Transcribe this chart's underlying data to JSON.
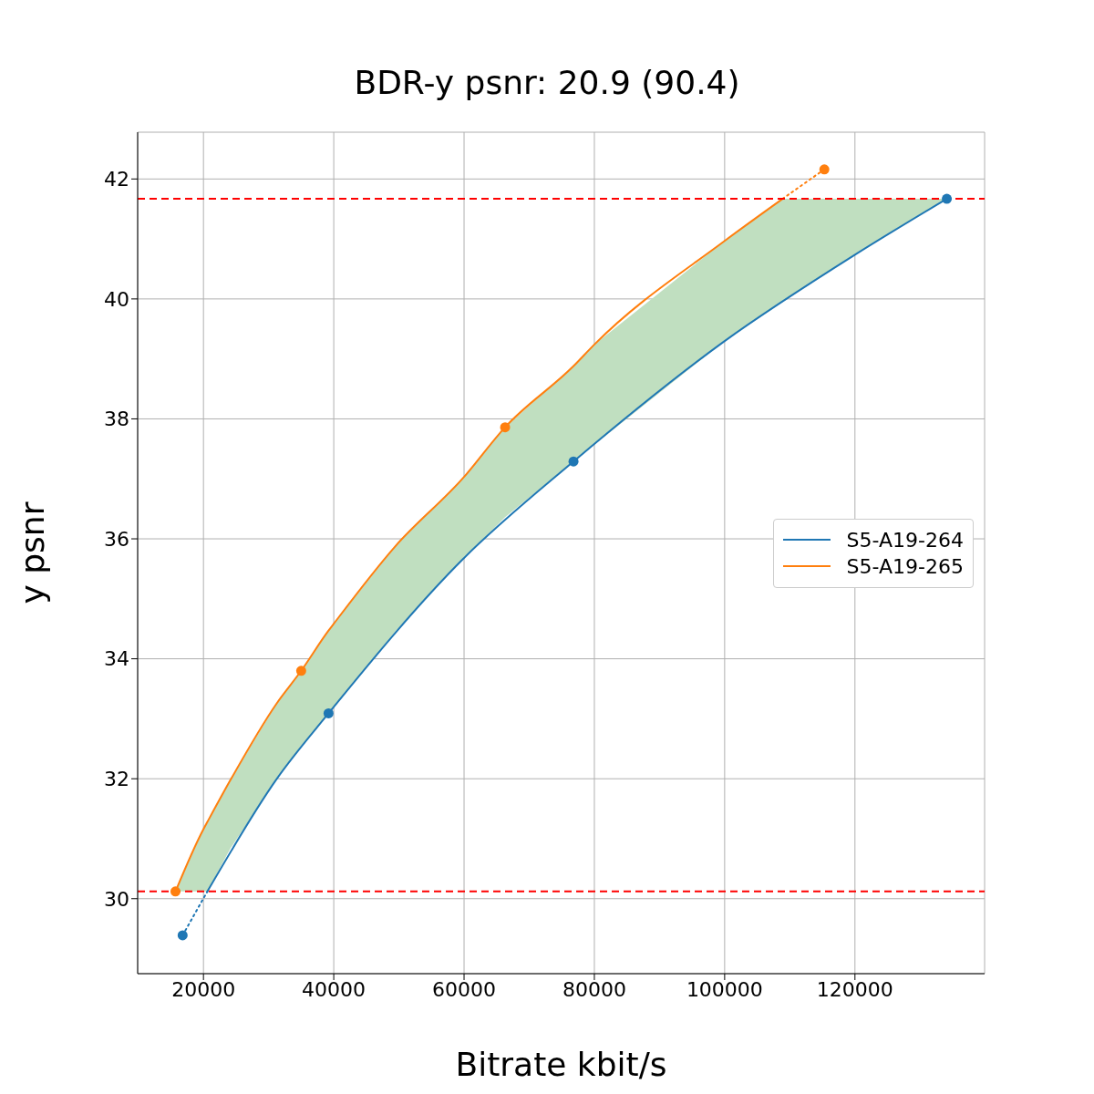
{
  "chart_data": {
    "type": "line",
    "title": "BDR-y psnr: 20.9 (90.4)",
    "xlabel": "Bitrate kbit/s",
    "ylabel": "y psnr",
    "xlim": [
      9900,
      139900
    ],
    "xticks": [
      20000,
      40000,
      60000,
      80000,
      100000,
      120000
    ],
    "ylim": [
      28.75,
      42.78
    ],
    "yticks": [
      30,
      32,
      34,
      36,
      38,
      40,
      42
    ],
    "grid": true,
    "legend": "center right",
    "series": [
      {
        "name": "S5-A19-264",
        "color": "#1f77b4",
        "line_style": "solid",
        "x": [
          20600,
          31200,
          39200,
          59900,
          76800,
          99900,
          119900,
          134100
        ],
        "values": [
          30.12,
          31.99,
          33.09,
          35.67,
          37.29,
          39.29,
          40.73,
          41.67
        ]
      },
      {
        "type": "line",
        "color": "#1f77b4",
        "line_style": "dotted",
        "x": [
          16800,
          20600
        ],
        "values": [
          29.39,
          30.12
        ]
      },
      {
        "name": "S5-A19-265",
        "color": "#ff7f0e",
        "line_style": "solid",
        "x": [
          15700,
          20000,
          20600,
          24200,
          31200,
          35000,
          39200,
          39900,
          49400,
          59900,
          66300,
          76800,
          80000,
          99900,
          108900,
          119900,
          134100
        ],
        "values": [
          30.12,
          31.16,
          31.28,
          31.99,
          33.25,
          33.8,
          34.47,
          34.57,
          35.87,
          37.02,
          37.86,
          38.88,
          39.24,
          40.96,
          41.67,
          null,
          null
        ],
        "lower": [
          30.12,
          30.12,
          30.12,
          30.85,
          31.99,
          32.55,
          33.09,
          33.19,
          34.45,
          35.67,
          36.36,
          37.29,
          37.57,
          39.29,
          39.95,
          40.73,
          41.67
        ],
        "upper": [
          30.12,
          31.16,
          31.28,
          31.99,
          33.25,
          33.8,
          34.47,
          34.57,
          35.87,
          37.02,
          37.86,
          38.88,
          39.24,
          40.96,
          41.67,
          41.67,
          41.67
        ]
      },
      {
        "type": "line",
        "color": "#ff7f0e",
        "line_style": "dotted",
        "x": [
          108900,
          115300
        ],
        "values": [
          41.67,
          42.16
        ]
      },
      {
        "type": "scatter",
        "color": "#1f77b4",
        "marker": "circle",
        "x": [
          16800,
          39200,
          76800,
          134100
        ],
        "values": [
          29.39,
          33.09,
          37.29,
          41.67
        ]
      },
      {
        "type": "scatter",
        "color": "#ff7f0e",
        "marker": "circle",
        "x": [
          15700,
          35000,
          66300,
          115300
        ],
        "values": [
          30.12,
          33.8,
          37.86,
          42.16
        ]
      }
    ],
    "ref_lines": [
      {
        "axis": "y",
        "value": 30.12,
        "color": "#ff0000",
        "line_style": "dashed"
      },
      {
        "axis": "y",
        "value": 41.67,
        "color": "#ff0000",
        "line_style": "dashed"
      }
    ]
  }
}
